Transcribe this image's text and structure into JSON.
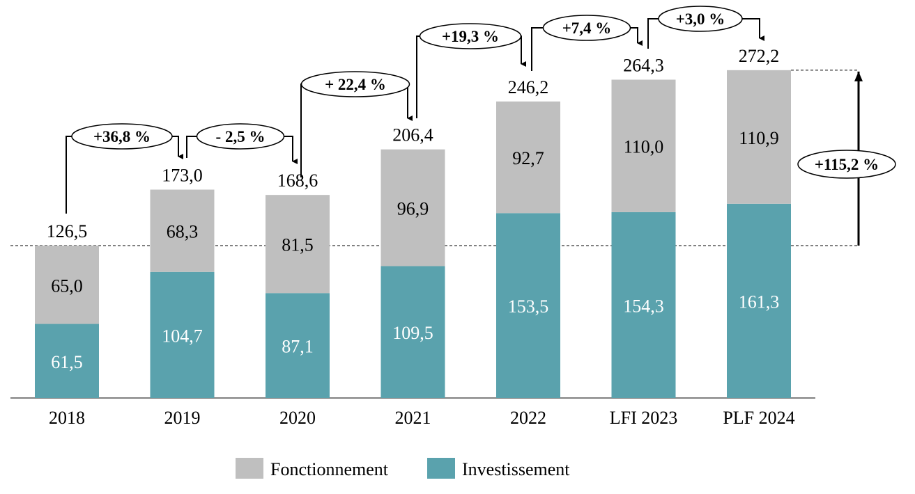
{
  "chart_data": {
    "type": "bar",
    "stacked": true,
    "categories": [
      "2018",
      "2019",
      "2020",
      "2021",
      "2022",
      "LFI 2023",
      "PLF 2024"
    ],
    "series": [
      {
        "name": "Investissement",
        "color": "#5aa2ad",
        "values": [
          61.5,
          104.7,
          87.1,
          109.5,
          153.5,
          154.3,
          161.3
        ],
        "labels": [
          "61,5",
          "104,7",
          "87,1",
          "109,5",
          "153,5",
          "154,3",
          "161,3"
        ]
      },
      {
        "name": "Fonctionnement",
        "color": "#bfbfbf",
        "values": [
          65.0,
          68.3,
          81.5,
          96.9,
          92.7,
          110.0,
          110.9
        ],
        "labels": [
          "65,0",
          "68,3",
          "81,5",
          "96,9",
          "92,7",
          "110,0",
          "110,9"
        ]
      }
    ],
    "totals": [
      126.5,
      173.0,
      168.6,
      206.4,
      246.2,
      264.3,
      272.2
    ],
    "total_labels": [
      "126,5",
      "173,0",
      "168,6",
      "206,4",
      "246,2",
      "264,3",
      "272,2"
    ],
    "changes": [
      {
        "from": "2018",
        "to": "2019",
        "label": "+36,8 %"
      },
      {
        "from": "2019",
        "to": "2020",
        "label": "- 2,5 %"
      },
      {
        "from": "2020",
        "to": "2021",
        "label": "+ 22,4 %"
      },
      {
        "from": "2021",
        "to": "2022",
        "label": "+19,3 %"
      },
      {
        "from": "2022",
        "to": "LFI 2023",
        "label": "+7,4 %"
      },
      {
        "from": "LFI 2023",
        "to": "PLF 2024",
        "label": "+3,0 %"
      }
    ],
    "overall_change": {
      "from": "2018",
      "to": "PLF 2024",
      "label": "+115,2 %"
    },
    "legend": [
      "Fonctionnement",
      "Investissement"
    ],
    "legend_placement": "bottom",
    "grid": false
  }
}
